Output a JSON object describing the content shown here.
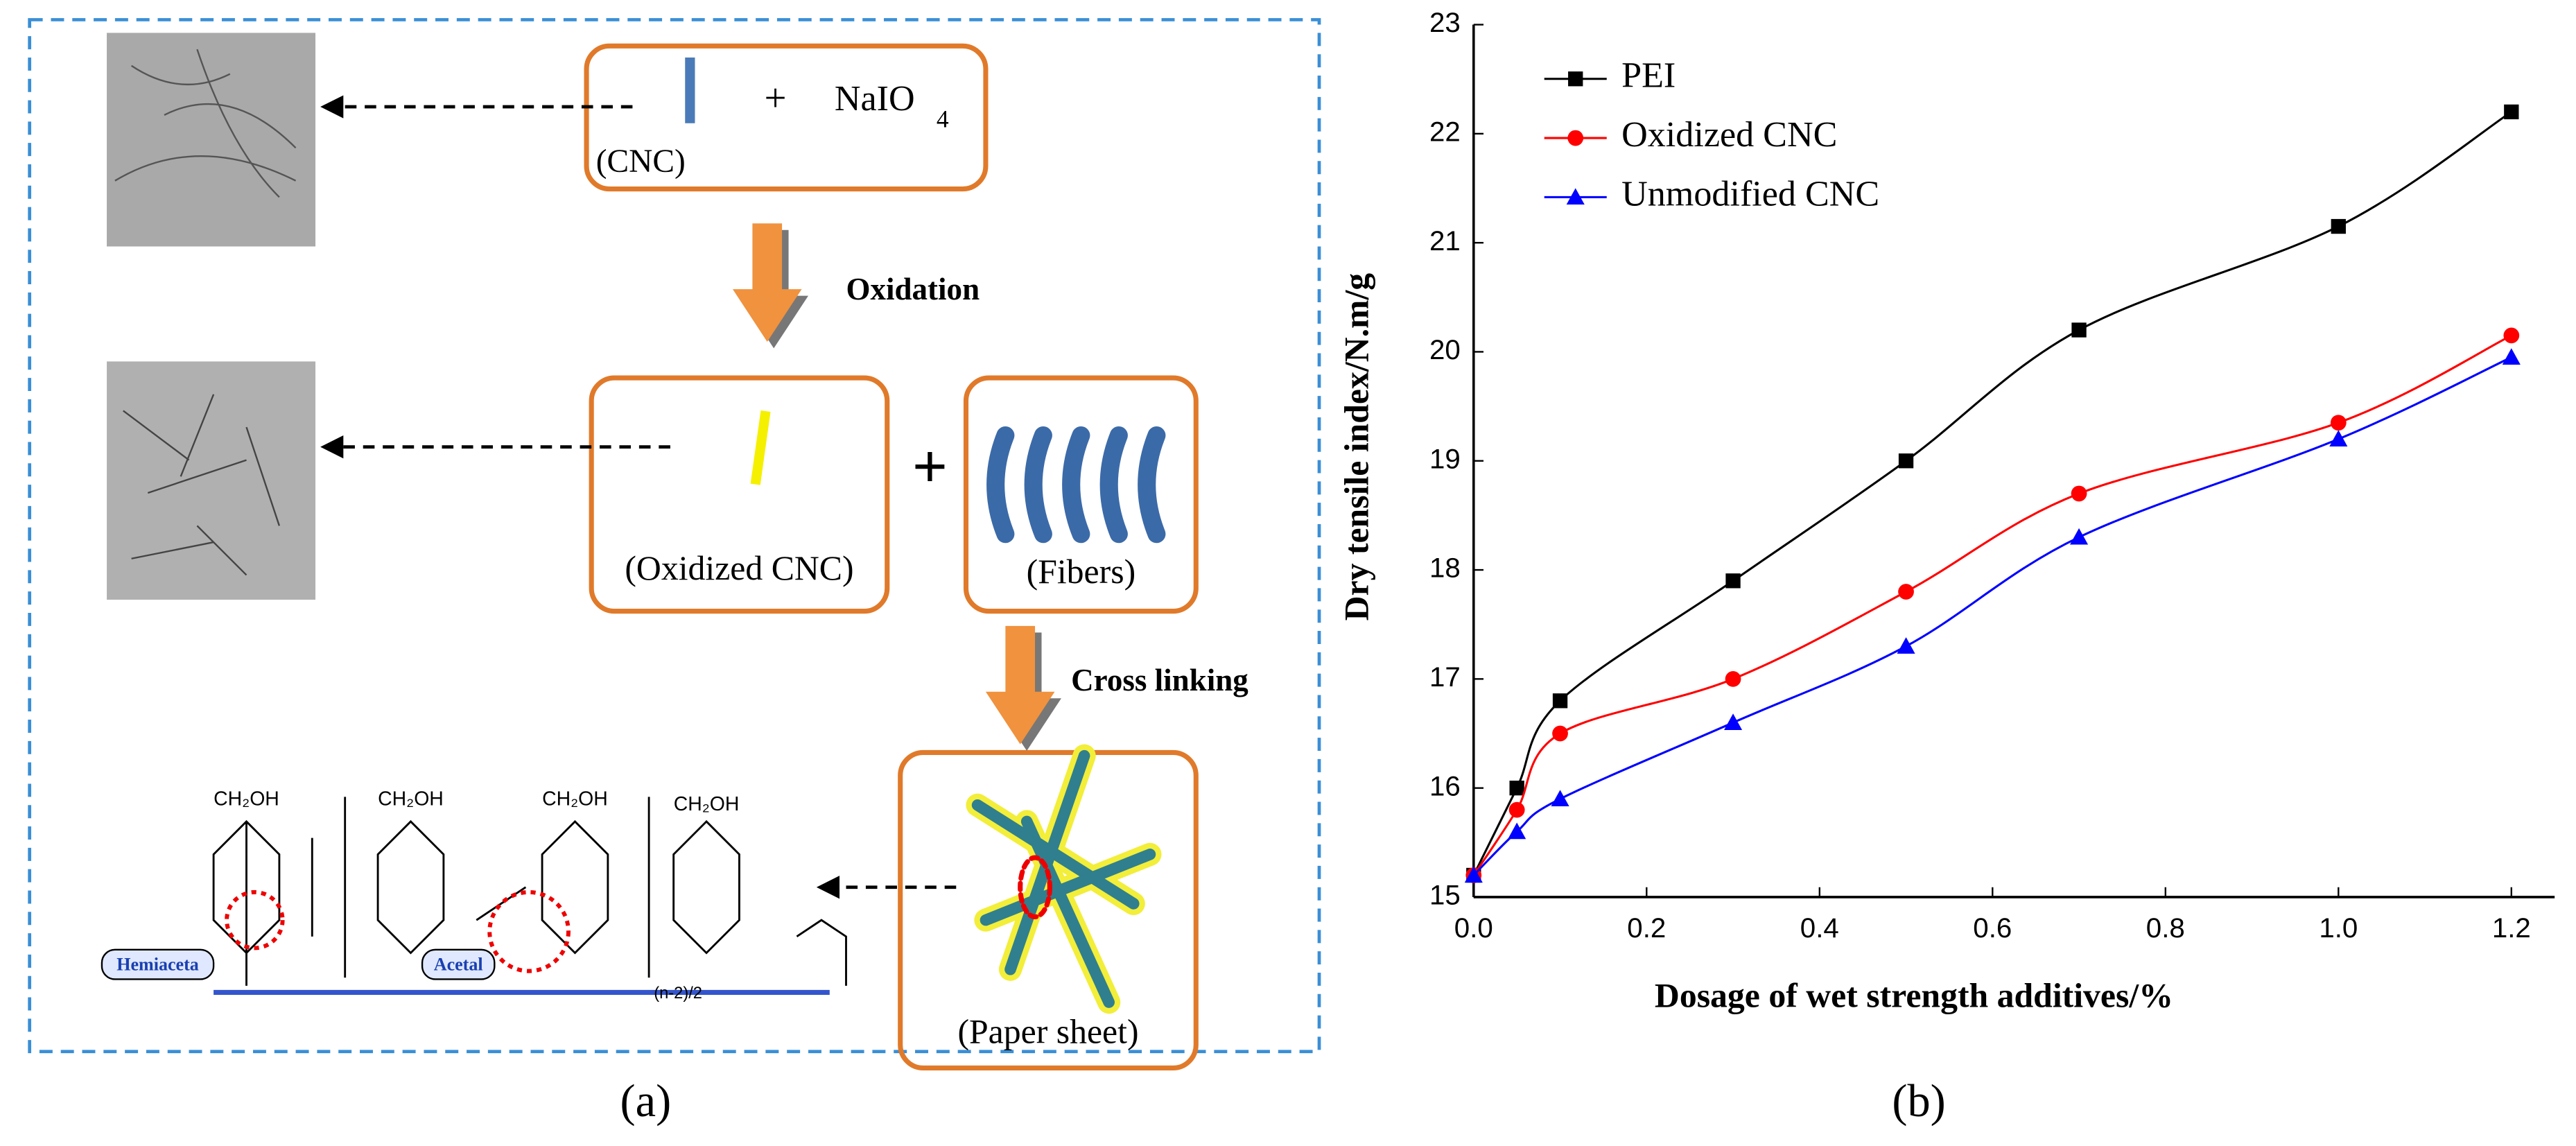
{
  "diagram": {
    "cnc_label": "(CNC)",
    "plus_1": "+",
    "reagent": "NaIO",
    "reagent_sub": "4",
    "step_1": "Oxidation",
    "oxidized_label": "(Oxidized CNC)",
    "plus_2": "+",
    "fibers_label": "(Fibers)",
    "step_2": "Cross linking",
    "paper_label": "(Paper sheet)",
    "chem_groups": [
      "CH₂OH",
      "CH₂OH",
      "CH₂OH",
      "CH₂OH"
    ],
    "repeat_index": "(n-2)/2",
    "bond_1": "Hemiaceta",
    "bond_2": "Acetal",
    "panel_label": "(a)"
  },
  "chart_data": {
    "type": "line",
    "panel_label": "(b)",
    "x_label": "Dosage of wet strength additives/%",
    "y_label": "Dry tensile index/N.m/g",
    "x": [
      0,
      0.05,
      0.1,
      0.3,
      0.5,
      0.7,
      1.0,
      1.2
    ],
    "series": [
      {
        "name": "PEI",
        "color": "#000000",
        "marker": "square",
        "values": [
          15.2,
          16.0,
          16.8,
          17.9,
          19.0,
          20.2,
          21.15,
          22.2
        ]
      },
      {
        "name": "Oxidized CNC",
        "color": "#ff0000",
        "marker": "circle",
        "values": [
          15.2,
          15.8,
          16.5,
          17.0,
          17.8,
          18.7,
          19.35,
          20.15
        ]
      },
      {
        "name": "Unmodified CNC",
        "color": "#0000ff",
        "marker": "triangle",
        "values": [
          15.2,
          15.6,
          15.9,
          16.6,
          17.3,
          18.3,
          19.2,
          19.95
        ]
      }
    ],
    "xlim": [
      0,
      1.25
    ],
    "xticks": [
      {
        "value": 0,
        "label": "0.0"
      },
      {
        "value": 0.2,
        "label": "0.2"
      },
      {
        "value": 0.4,
        "label": "0.4"
      },
      {
        "value": 0.6,
        "label": "0.6"
      },
      {
        "value": 0.8,
        "label": "0.8"
      },
      {
        "value": 1,
        "label": "1.0"
      },
      {
        "value": 1.2,
        "label": "1.2"
      }
    ],
    "ylim": [
      15,
      23
    ],
    "yticks": [
      15,
      16,
      17,
      18,
      19,
      20,
      21,
      22,
      23
    ],
    "legend": "top-left",
    "smooth": true
  }
}
